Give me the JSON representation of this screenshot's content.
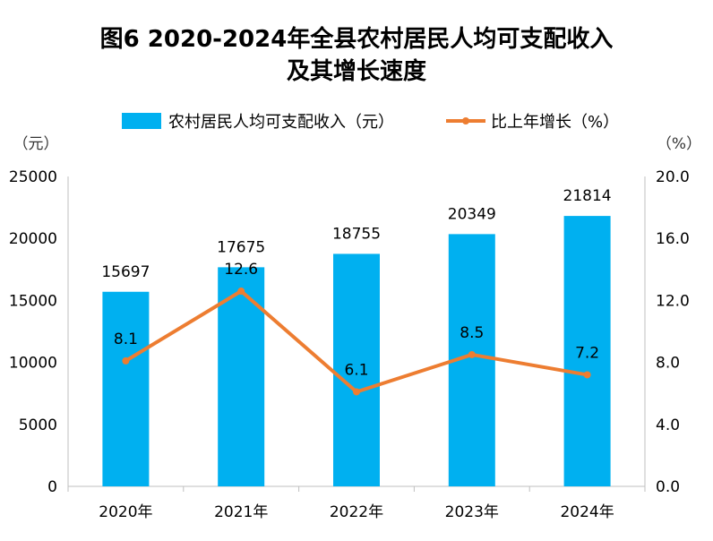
{
  "chart_data": {
    "type": "bar",
    "title_line1": "图6   2020-2024年全县农村居民人均可支配收入",
    "title_line2": "及其增长速度",
    "categories": [
      "2020年",
      "2021年",
      "2022年",
      "2023年",
      "2024年"
    ],
    "series": [
      {
        "name": "农村居民人均可支配收入（元）",
        "type": "bar",
        "axis": "left",
        "color": "#00B0F0",
        "values": [
          15697,
          17675,
          18755,
          20349,
          21814
        ],
        "labels": [
          "15697",
          "17675",
          "18755",
          "20349",
          "21814"
        ]
      },
      {
        "name": "比上年增长（%）",
        "type": "line",
        "axis": "right",
        "color": "#ED7D31",
        "values": [
          8.1,
          12.6,
          6.1,
          8.5,
          7.2
        ],
        "labels": [
          "8.1",
          "12.6",
          "6.1",
          "8.5",
          "7.2"
        ]
      }
    ],
    "y_left": {
      "unit": "（元）",
      "range": [
        0,
        25000
      ],
      "ticks": [
        "0",
        "5000",
        "10000",
        "15000",
        "20000",
        "25000"
      ]
    },
    "y_right": {
      "unit": "（%）",
      "range": [
        0,
        20
      ],
      "ticks": [
        "0.0",
        "4.0",
        "8.0",
        "12.0",
        "16.0",
        "20.0"
      ]
    },
    "grid": false,
    "legend_position": "top"
  }
}
